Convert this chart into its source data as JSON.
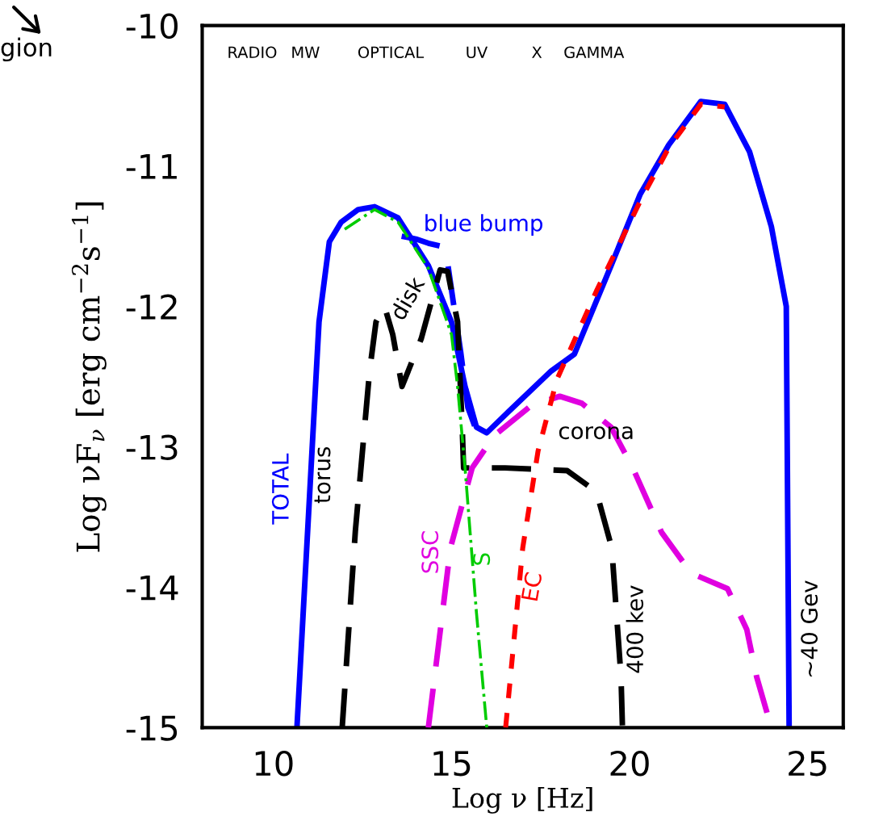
{
  "chart_data": {
    "type": "line",
    "xlabel": "Log ν [Hz]",
    "ylabel": "Log νF$_{ν}$ [erg cm$^{−2}$s$^{−1}$]",
    "xlim": [
      8,
      26
    ],
    "ylim": [
      -15,
      -10
    ],
    "xticks": [
      10,
      15,
      20,
      25
    ],
    "yticks": [
      -15,
      -14,
      -13,
      -12,
      -11,
      -10
    ],
    "grid": false,
    "legend": false,
    "series": [
      {
        "name": "TOTAL",
        "color": "#0000ff",
        "line_style": "solid",
        "x": [
          10.66,
          11.28,
          11.57,
          11.9,
          12.38,
          12.84,
          13.5,
          14.35,
          15.0,
          15.38,
          15.7,
          15.99,
          16.6,
          17.8,
          18.45,
          19.48,
          20.3,
          21.1,
          22.0,
          22.67,
          23.37,
          23.98,
          24.4,
          24.48
        ],
        "values": [
          -15,
          -12.11,
          -11.54,
          -11.4,
          -11.31,
          -11.29,
          -11.37,
          -11.71,
          -12.11,
          -12.57,
          -12.86,
          -12.9,
          -12.75,
          -12.46,
          -12.34,
          -11.71,
          -11.2,
          -10.85,
          -10.54,
          -10.56,
          -10.9,
          -11.43,
          -12.0,
          -15
        ]
      },
      {
        "name": "blue bump",
        "color": "#0000ff",
        "line_style": "dashed",
        "x": [
          13.6,
          14.0,
          14.35,
          14.68,
          14.89,
          15.05,
          15.25,
          15.46,
          15.65
        ],
        "values": [
          -11.5,
          -11.52,
          -11.55,
          -11.57,
          -11.69,
          -11.97,
          -12.31,
          -12.72,
          -12.85
        ]
      },
      {
        "color": "#000000",
        "line_style": "dashed",
        "x": [
          11.93,
          12.3,
          12.7,
          12.88,
          13.12,
          13.35,
          13.61,
          14.15,
          14.68,
          14.89,
          15.17,
          15.3,
          15.34,
          16.5,
          18.25,
          19.07,
          19.5,
          19.76,
          19.8
        ],
        "values": [
          -15,
          -13.6,
          -12.46,
          -12.11,
          -12.0,
          -12.2,
          -12.57,
          -12.23,
          -11.74,
          -11.75,
          -12.11,
          -12.86,
          -13.15,
          -13.15,
          -13.17,
          -13.32,
          -13.72,
          -14.64,
          -15
        ]
      },
      {
        "name": "SSC",
        "color": "#e000e0",
        "line_style": "dashed",
        "x": [
          14.35,
          14.97,
          15.58,
          16.2,
          17.22,
          18.04,
          18.66,
          19.48,
          20.09,
          20.9,
          21.73,
          22.75,
          23.29,
          23.57,
          23.98
        ],
        "values": [
          -15,
          -13.72,
          -13.15,
          -12.92,
          -12.71,
          -12.64,
          -12.69,
          -12.86,
          -13.15,
          -13.61,
          -13.9,
          -14.01,
          -14.3,
          -14.64,
          -15
        ]
      },
      {
        "name": "S",
        "color": "#00cc00",
        "line_style": "dashdot",
        "x": [
          12.0,
          12.84,
          13.5,
          14.35,
          15.0,
          15.17,
          15.38,
          15.7,
          15.99
        ],
        "values": [
          -11.45,
          -11.31,
          -11.4,
          -11.73,
          -12.2,
          -12.57,
          -13.15,
          -14.18,
          -15
        ]
      },
      {
        "name": "EC",
        "color": "#ff0000",
        "line_style": "dotted",
        "x": [
          16.52,
          17.0,
          17.43,
          17.96,
          19.07,
          20.3,
          21.1,
          22.0,
          22.67
        ],
        "values": [
          -15,
          -13.72,
          -13.03,
          -12.52,
          -11.89,
          -11.25,
          -10.87,
          -10.56,
          -10.58
        ]
      }
    ],
    "annotations": [
      "RADIO",
      "MW",
      "OPTICAL",
      "UV",
      "X",
      "GAMMA",
      "torus",
      "disk",
      "corona",
      "400 kev",
      "~40 Gev",
      "gion"
    ]
  }
}
